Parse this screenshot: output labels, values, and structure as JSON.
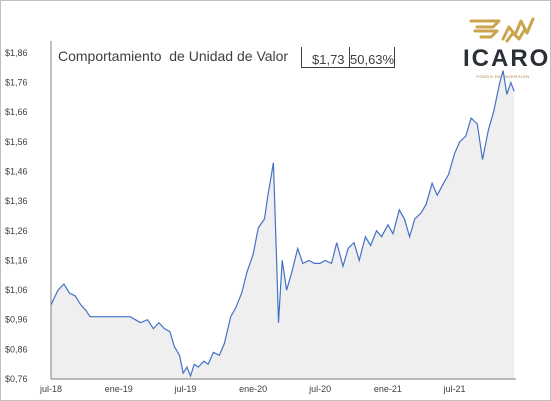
{
  "title": "Comportamiento  de Unidad de Valor",
  "value_box": {
    "value": "$1,73",
    "change": "50,63%"
  },
  "brand": {
    "name": "ICARO",
    "tagline": "FONDO DE INVERSIÓN",
    "colors": {
      "gold": "#c9a44c",
      "dark": "#2b2f38"
    }
  },
  "chart_data": {
    "type": "area",
    "title": "Comportamiento  de Unidad de Valor",
    "xlabel": "",
    "ylabel": "",
    "ylim": [
      0.76,
      1.9
    ],
    "xlim": [
      "2018-07-01",
      "2021-12-15"
    ],
    "ytick_labels": [
      "$0,76",
      "$0,86",
      "$0,96",
      "$1,06",
      "$1,16",
      "$1,26",
      "$1,36",
      "$1,46",
      "$1,56",
      "$1,66",
      "$1,76",
      "$1,86"
    ],
    "ytick_values": [
      0.76,
      0.86,
      0.96,
      1.06,
      1.16,
      1.26,
      1.36,
      1.46,
      1.56,
      1.66,
      1.76,
      1.86
    ],
    "xtick_labels": [
      "jul-18",
      "ene-19",
      "jul-19",
      "ene-20",
      "jul-20",
      "ene-21",
      "jul-21"
    ],
    "xtick_dates": [
      "2018-07-01",
      "2019-01-01",
      "2019-07-01",
      "2020-01-01",
      "2020-07-01",
      "2021-01-01",
      "2021-07-01"
    ],
    "grid": false,
    "colors": {
      "line": "#4472c4",
      "fill": "#efefef",
      "axis": "#7f7f7f"
    },
    "series": [
      {
        "points": [
          [
            "2018-07-01",
            1.01
          ],
          [
            "2018-07-20",
            1.06
          ],
          [
            "2018-08-05",
            1.08
          ],
          [
            "2018-08-20",
            1.05
          ],
          [
            "2018-09-05",
            1.04
          ],
          [
            "2018-09-20",
            1.01
          ],
          [
            "2018-10-05",
            0.99
          ],
          [
            "2018-10-15",
            0.97
          ],
          [
            "2018-11-01",
            0.97
          ],
          [
            "2018-12-01",
            0.97
          ],
          [
            "2019-01-01",
            0.97
          ],
          [
            "2019-02-01",
            0.97
          ],
          [
            "2019-02-15",
            0.96
          ],
          [
            "2019-03-01",
            0.95
          ],
          [
            "2019-03-20",
            0.96
          ],
          [
            "2019-04-05",
            0.93
          ],
          [
            "2019-04-20",
            0.95
          ],
          [
            "2019-05-05",
            0.93
          ],
          [
            "2019-05-20",
            0.92
          ],
          [
            "2019-06-01",
            0.87
          ],
          [
            "2019-06-15",
            0.84
          ],
          [
            "2019-06-25",
            0.78
          ],
          [
            "2019-07-05",
            0.8
          ],
          [
            "2019-07-15",
            0.77
          ],
          [
            "2019-07-25",
            0.81
          ],
          [
            "2019-08-05",
            0.8
          ],
          [
            "2019-08-20",
            0.82
          ],
          [
            "2019-09-01",
            0.81
          ],
          [
            "2019-09-15",
            0.85
          ],
          [
            "2019-10-01",
            0.84
          ],
          [
            "2019-10-15",
            0.88
          ],
          [
            "2019-11-01",
            0.97
          ],
          [
            "2019-11-15",
            1.0
          ],
          [
            "2019-12-01",
            1.05
          ],
          [
            "2019-12-15",
            1.12
          ],
          [
            "2020-01-01",
            1.18
          ],
          [
            "2020-01-15",
            1.27
          ],
          [
            "2020-02-01",
            1.3
          ],
          [
            "2020-02-10",
            1.38
          ],
          [
            "2020-02-20",
            1.45
          ],
          [
            "2020-02-25",
            1.49
          ],
          [
            "2020-03-05",
            1.15
          ],
          [
            "2020-03-10",
            0.95
          ],
          [
            "2020-03-20",
            1.16
          ],
          [
            "2020-04-01",
            1.06
          ],
          [
            "2020-04-15",
            1.12
          ],
          [
            "2020-05-01",
            1.2
          ],
          [
            "2020-05-15",
            1.15
          ],
          [
            "2020-06-01",
            1.16
          ],
          [
            "2020-06-15",
            1.15
          ],
          [
            "2020-07-01",
            1.15
          ],
          [
            "2020-07-15",
            1.16
          ],
          [
            "2020-08-01",
            1.15
          ],
          [
            "2020-08-15",
            1.22
          ],
          [
            "2020-09-01",
            1.14
          ],
          [
            "2020-09-15",
            1.2
          ],
          [
            "2020-10-01",
            1.22
          ],
          [
            "2020-10-15",
            1.16
          ],
          [
            "2020-11-01",
            1.24
          ],
          [
            "2020-11-15",
            1.21
          ],
          [
            "2020-12-01",
            1.26
          ],
          [
            "2020-12-15",
            1.24
          ],
          [
            "2021-01-01",
            1.28
          ],
          [
            "2021-01-15",
            1.25
          ],
          [
            "2021-02-01",
            1.33
          ],
          [
            "2021-02-15",
            1.3
          ],
          [
            "2021-03-01",
            1.24
          ],
          [
            "2021-03-15",
            1.3
          ],
          [
            "2021-04-01",
            1.32
          ],
          [
            "2021-04-15",
            1.35
          ],
          [
            "2021-05-01",
            1.42
          ],
          [
            "2021-05-15",
            1.38
          ],
          [
            "2021-06-01",
            1.42
          ],
          [
            "2021-06-15",
            1.45
          ],
          [
            "2021-07-01",
            1.52
          ],
          [
            "2021-07-15",
            1.56
          ],
          [
            "2021-08-01",
            1.58
          ],
          [
            "2021-08-15",
            1.64
          ],
          [
            "2021-09-01",
            1.62
          ],
          [
            "2021-09-15",
            1.5
          ],
          [
            "2021-10-01",
            1.6
          ],
          [
            "2021-10-15",
            1.66
          ],
          [
            "2021-11-01",
            1.76
          ],
          [
            "2021-11-10",
            1.8
          ],
          [
            "2021-11-20",
            1.72
          ],
          [
            "2021-12-01",
            1.76
          ],
          [
            "2021-12-10",
            1.73
          ]
        ]
      }
    ]
  }
}
